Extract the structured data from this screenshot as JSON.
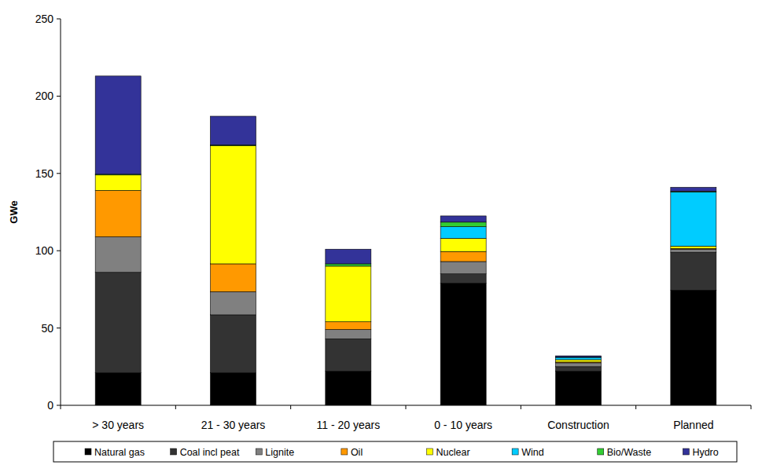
{
  "chart_data": {
    "type": "bar",
    "stacked": true,
    "y_label": "GWe",
    "categories": [
      "> 30 years",
      "21 - 30 years",
      "11 - 20 years",
      "0 - 10 years",
      "Construction",
      "Planned"
    ],
    "ylim": [
      0,
      250
    ],
    "yticks": [
      0,
      50,
      100,
      150,
      200,
      250
    ],
    "grid": false,
    "legend": "bottom",
    "series": [
      {
        "name": "Natural gas",
        "color": "#000000",
        "values": [
          21,
          21,
          22,
          79,
          22,
          74.5
        ]
      },
      {
        "name": "Coal incl peat",
        "color": "#333333",
        "values": [
          65,
          37.5,
          21,
          6,
          3,
          24.5
        ]
      },
      {
        "name": "Lignite",
        "color": "#808080",
        "values": [
          23,
          15,
          6,
          8,
          2.5,
          2
        ]
      },
      {
        "name": "Oil",
        "color": "#ff9900",
        "values": [
          30,
          18,
          5,
          6.5,
          0.5,
          0.5
        ]
      },
      {
        "name": "Nuclear",
        "color": "#ffff00",
        "values": [
          10,
          76.5,
          36,
          8.5,
          1.5,
          1.5
        ]
      },
      {
        "name": "Wind",
        "color": "#00ccff",
        "values": [
          0,
          0,
          0,
          7.5,
          1.5,
          35
        ]
      },
      {
        "name": "Bio/Waste",
        "color": "#33cc33",
        "values": [
          0.5,
          0.5,
          1.5,
          3,
          0.3,
          0.5
        ]
      },
      {
        "name": "Hydro",
        "color": "#333399",
        "values": [
          63.5,
          18.5,
          9.5,
          4,
          0.7,
          2.5
        ]
      }
    ]
  }
}
